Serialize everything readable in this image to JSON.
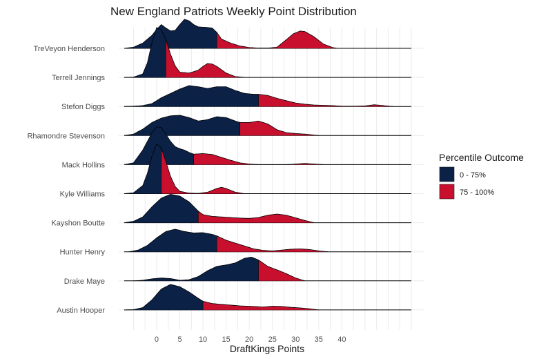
{
  "chart_data": {
    "type": "ridgeline",
    "title": "New England Patriots Weekly Point Distribution",
    "xlabel": "DraftKings Points",
    "ylabel": "",
    "xlim": [
      -7,
      55
    ],
    "xticks": [
      0,
      5,
      10,
      15,
      20,
      25,
      30,
      35,
      40
    ],
    "legend": {
      "title": "Percentile Outcome",
      "position": "right",
      "entries": [
        {
          "label": "0 - 75%",
          "color": "#0c2146"
        },
        {
          "label": "75 - 100%",
          "color": "#c8102e"
        }
      ]
    },
    "series": [
      {
        "name": "Austin Hooper",
        "p75": 10,
        "xmin": -7,
        "xmax": 35,
        "density": [
          [
            -7,
            0
          ],
          [
            -5,
            0.01
          ],
          [
            -3,
            0.08
          ],
          [
            -1,
            0.35
          ],
          [
            1,
            0.72
          ],
          [
            3,
            0.88
          ],
          [
            5,
            0.8
          ],
          [
            7,
            0.62
          ],
          [
            9,
            0.4
          ],
          [
            10,
            0.3
          ],
          [
            12,
            0.22
          ],
          [
            15,
            0.18
          ],
          [
            18,
            0.14
          ],
          [
            21,
            0.12
          ],
          [
            23,
            0.1
          ],
          [
            25,
            0.13
          ],
          [
            27,
            0.12
          ],
          [
            29,
            0.09
          ],
          [
            31,
            0.07
          ],
          [
            33,
            0.04
          ],
          [
            35,
            0
          ]
        ]
      },
      {
        "name": "Drake Maye",
        "p75": 22,
        "xmin": -5,
        "xmax": 32,
        "density": [
          [
            -5,
            0
          ],
          [
            -3,
            0.02
          ],
          [
            -1,
            0.07
          ],
          [
            1,
            0.1
          ],
          [
            3,
            0.08
          ],
          [
            5,
            0.02
          ],
          [
            7,
            0.04
          ],
          [
            9,
            0.15
          ],
          [
            11,
            0.35
          ],
          [
            13,
            0.5
          ],
          [
            15,
            0.55
          ],
          [
            17,
            0.62
          ],
          [
            19,
            0.78
          ],
          [
            20.5,
            0.82
          ],
          [
            22,
            0.72
          ],
          [
            24,
            0.5
          ],
          [
            26,
            0.38
          ],
          [
            28,
            0.25
          ],
          [
            30,
            0.1
          ],
          [
            32,
            0
          ]
        ]
      },
      {
        "name": "Hunter Henry",
        "p75": 13,
        "xmin": -6,
        "xmax": 37,
        "density": [
          [
            -6,
            0
          ],
          [
            -4,
            0.06
          ],
          [
            -2,
            0.22
          ],
          [
            0,
            0.48
          ],
          [
            2,
            0.7
          ],
          [
            4,
            0.78
          ],
          [
            6,
            0.7
          ],
          [
            8,
            0.65
          ],
          [
            10,
            0.66
          ],
          [
            12,
            0.6
          ],
          [
            13,
            0.55
          ],
          [
            15,
            0.4
          ],
          [
            17,
            0.3
          ],
          [
            19,
            0.2
          ],
          [
            21,
            0.1
          ],
          [
            23,
            0.05
          ],
          [
            25,
            0.03
          ],
          [
            27,
            0.06
          ],
          [
            29,
            0.09
          ],
          [
            31,
            0.1
          ],
          [
            33,
            0.08
          ],
          [
            35,
            0.03
          ],
          [
            37,
            0
          ]
        ]
      },
      {
        "name": "Kayshon Boutte",
        "p75": 9,
        "xmin": -7,
        "xmax": 34,
        "density": [
          [
            -7,
            0
          ],
          [
            -5,
            0.05
          ],
          [
            -3,
            0.2
          ],
          [
            -1,
            0.55
          ],
          [
            1,
            0.85
          ],
          [
            3,
            0.98
          ],
          [
            5,
            0.92
          ],
          [
            7,
            0.72
          ],
          [
            9,
            0.4
          ],
          [
            10,
            0.28
          ],
          [
            12,
            0.22
          ],
          [
            14,
            0.2
          ],
          [
            16,
            0.18
          ],
          [
            18,
            0.16
          ],
          [
            20,
            0.15
          ],
          [
            22,
            0.18
          ],
          [
            24,
            0.26
          ],
          [
            26,
            0.3
          ],
          [
            28,
            0.26
          ],
          [
            30,
            0.17
          ],
          [
            32,
            0.08
          ],
          [
            34,
            0
          ]
        ]
      },
      {
        "name": "Kyle Williams",
        "p75": 1,
        "xmin": -7,
        "xmax": 19,
        "density": [
          [
            -7,
            0
          ],
          [
            -5,
            0.03
          ],
          [
            -3,
            0.28
          ],
          [
            -2,
            0.7
          ],
          [
            -1,
            1.3
          ],
          [
            0,
            1.72
          ],
          [
            1,
            1.58
          ],
          [
            2,
            1.1
          ],
          [
            3,
            0.6
          ],
          [
            4,
            0.25
          ],
          [
            5,
            0.08
          ],
          [
            7,
            0.02
          ],
          [
            9,
            0.01
          ],
          [
            11,
            0.05
          ],
          [
            13,
            0.18
          ],
          [
            14,
            0.22
          ],
          [
            15,
            0.18
          ],
          [
            17,
            0.05
          ],
          [
            19,
            0
          ]
        ]
      },
      {
        "name": "Mack Hollins",
        "p75": 8,
        "xmin": -7,
        "xmax": 36,
        "density": [
          [
            -7,
            0
          ],
          [
            -5,
            0.06
          ],
          [
            -3,
            0.5
          ],
          [
            -1,
            1.1
          ],
          [
            0,
            1.3
          ],
          [
            1,
            1.28
          ],
          [
            2,
            1.05
          ],
          [
            3,
            0.8
          ],
          [
            4,
            0.62
          ],
          [
            5,
            0.55
          ],
          [
            6,
            0.5
          ],
          [
            7,
            0.42
          ],
          [
            8,
            0.36
          ],
          [
            10,
            0.38
          ],
          [
            12,
            0.35
          ],
          [
            14,
            0.25
          ],
          [
            16,
            0.15
          ],
          [
            18,
            0.06
          ],
          [
            20,
            0.02
          ],
          [
            22,
            0
          ],
          [
            26,
            0
          ],
          [
            28,
            0
          ],
          [
            30,
            0.02
          ],
          [
            32,
            0.04
          ],
          [
            34,
            0.02
          ],
          [
            36,
            0
          ]
        ]
      },
      {
        "name": "Rhamondre Stevenson",
        "p75": 18,
        "xmin": -7,
        "xmax": 35,
        "density": [
          [
            -7,
            0
          ],
          [
            -5,
            0.05
          ],
          [
            -3,
            0.22
          ],
          [
            -1,
            0.45
          ],
          [
            1,
            0.6
          ],
          [
            3,
            0.68
          ],
          [
            5,
            0.7
          ],
          [
            7,
            0.62
          ],
          [
            9,
            0.5
          ],
          [
            11,
            0.55
          ],
          [
            13,
            0.65
          ],
          [
            15,
            0.62
          ],
          [
            17,
            0.5
          ],
          [
            18,
            0.45
          ],
          [
            20,
            0.45
          ],
          [
            22,
            0.5
          ],
          [
            24,
            0.4
          ],
          [
            26,
            0.2
          ],
          [
            28,
            0.1
          ],
          [
            30,
            0.07
          ],
          [
            32,
            0.05
          ],
          [
            35,
            0
          ]
        ]
      },
      {
        "name": "Stefon Diggs",
        "p75": 22,
        "xmin": -7,
        "xmax": 51,
        "density": [
          [
            -7,
            0
          ],
          [
            -5,
            0.01
          ],
          [
            -3,
            0.03
          ],
          [
            -1,
            0.1
          ],
          [
            1,
            0.3
          ],
          [
            3,
            0.45
          ],
          [
            5,
            0.6
          ],
          [
            7,
            0.72
          ],
          [
            9,
            0.68
          ],
          [
            11,
            0.62
          ],
          [
            13,
            0.68
          ],
          [
            15,
            0.68
          ],
          [
            17,
            0.55
          ],
          [
            19,
            0.45
          ],
          [
            21,
            0.42
          ],
          [
            22,
            0.42
          ],
          [
            24,
            0.38
          ],
          [
            26,
            0.28
          ],
          [
            28,
            0.2
          ],
          [
            30,
            0.12
          ],
          [
            32,
            0.08
          ],
          [
            34,
            0.05
          ],
          [
            36,
            0.04
          ],
          [
            38,
            0.03
          ],
          [
            40,
            0.01
          ],
          [
            43,
            0.01
          ],
          [
            45,
            0.02
          ],
          [
            47,
            0.06
          ],
          [
            49,
            0.03
          ],
          [
            51,
            0
          ]
        ]
      },
      {
        "name": "Terrell Jennings",
        "p75": 2,
        "xmin": -7,
        "xmax": 19,
        "density": [
          [
            -7,
            0
          ],
          [
            -5,
            0.01
          ],
          [
            -3,
            0.12
          ],
          [
            -2,
            0.5
          ],
          [
            -1,
            1.2
          ],
          [
            0,
            1.72
          ],
          [
            1,
            1.65
          ],
          [
            2,
            1.3
          ],
          [
            3,
            0.8
          ],
          [
            4,
            0.4
          ],
          [
            5,
            0.18
          ],
          [
            7,
            0.15
          ],
          [
            9,
            0.25
          ],
          [
            10,
            0.38
          ],
          [
            11,
            0.48
          ],
          [
            12,
            0.46
          ],
          [
            13,
            0.38
          ],
          [
            15,
            0.15
          ],
          [
            17,
            0.03
          ],
          [
            19,
            0
          ]
        ]
      },
      {
        "name": "TreVeyon Henderson",
        "p75": 13,
        "xmin": -7,
        "xmax": 39,
        "density": [
          [
            -7,
            0
          ],
          [
            -5,
            0.04
          ],
          [
            -3,
            0.18
          ],
          [
            -1,
            0.45
          ],
          [
            0,
            0.65
          ],
          [
            1,
            0.82
          ],
          [
            2,
            0.7
          ],
          [
            3,
            0.6
          ],
          [
            4,
            0.62
          ],
          [
            5,
            0.82
          ],
          [
            6,
            1.0
          ],
          [
            7,
            0.95
          ],
          [
            8,
            0.82
          ],
          [
            9,
            0.74
          ],
          [
            11,
            0.72
          ],
          [
            12,
            0.7
          ],
          [
            13,
            0.55
          ],
          [
            14,
            0.32
          ],
          [
            16,
            0.18
          ],
          [
            18,
            0.08
          ],
          [
            20,
            0.03
          ],
          [
            22,
            0.01
          ],
          [
            24,
            0.01
          ],
          [
            26,
            0.04
          ],
          [
            28,
            0.3
          ],
          [
            29.5,
            0.5
          ],
          [
            31,
            0.6
          ],
          [
            32,
            0.58
          ],
          [
            34,
            0.4
          ],
          [
            36,
            0.15
          ],
          [
            38,
            0.03
          ],
          [
            39,
            0
          ]
        ]
      }
    ]
  }
}
